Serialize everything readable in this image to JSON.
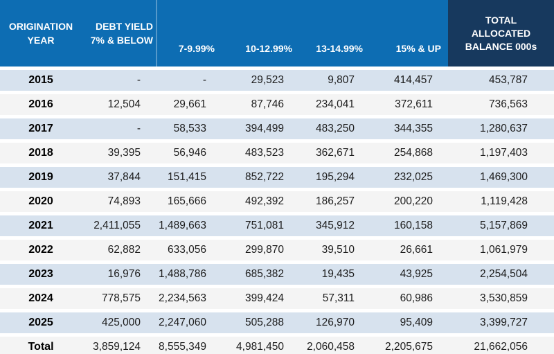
{
  "colors": {
    "header_blue": "#0d6db3",
    "header_navy": "#17395e",
    "row_blue": "#d7e2ee",
    "row_gray": "#f4f4f4",
    "text_dark": "#1c1c1c"
  },
  "chart_data": {
    "type": "table",
    "header": {
      "origination_line1": "ORIGINATION",
      "origination_line2": "YEAR",
      "debt_yield_line1": "DEBT YIELD",
      "debt_yield_line2": "7% & BELOW",
      "band_2": "7-9.99%",
      "band_3": "10-12.99%",
      "band_4": "13-14.99%",
      "band_5": "15% & UP",
      "total_line1": "TOTAL",
      "total_line2": "ALLOCATED",
      "total_line3": "BALANCE 000s"
    },
    "columns": [
      "ORIGINATION YEAR",
      "DEBT YIELD 7% & BELOW",
      "7-9.99%",
      "10-12.99%",
      "13-14.99%",
      "15% & UP",
      "TOTAL ALLOCATED BALANCE 000s"
    ],
    "rows": [
      {
        "year": "2015",
        "cells": [
          "-",
          "-",
          "29,523",
          "9,807",
          "414,457",
          "453,787"
        ]
      },
      {
        "year": "2016",
        "cells": [
          "12,504",
          "29,661",
          "87,746",
          "234,041",
          "372,611",
          "736,563"
        ]
      },
      {
        "year": "2017",
        "cells": [
          "-",
          "58,533",
          "394,499",
          "483,250",
          "344,355",
          "1,280,637"
        ]
      },
      {
        "year": "2018",
        "cells": [
          "39,395",
          "56,946",
          "483,523",
          "362,671",
          "254,868",
          "1,197,403"
        ]
      },
      {
        "year": "2019",
        "cells": [
          "37,844",
          "151,415",
          "852,722",
          "195,294",
          "232,025",
          "1,469,300"
        ]
      },
      {
        "year": "2020",
        "cells": [
          "74,893",
          "165,666",
          "492,392",
          "186,257",
          "200,220",
          "1,119,428"
        ]
      },
      {
        "year": "2021",
        "cells": [
          "2,411,055",
          "1,489,663",
          "751,081",
          "345,912",
          "160,158",
          "5,157,869"
        ]
      },
      {
        "year": "2022",
        "cells": [
          "62,882",
          "633,056",
          "299,870",
          "39,510",
          "26,661",
          "1,061,979"
        ]
      },
      {
        "year": "2023",
        "cells": [
          "16,976",
          "1,488,786",
          "685,382",
          "19,435",
          "43,925",
          "2,254,504"
        ]
      },
      {
        "year": "2024",
        "cells": [
          "778,575",
          "2,234,563",
          "399,424",
          "57,311",
          "60,986",
          "3,530,859"
        ]
      },
      {
        "year": "2025",
        "cells": [
          "425,000",
          "2,247,060",
          "505,288",
          "126,970",
          "95,409",
          "3,399,727"
        ]
      }
    ],
    "total": {
      "label": "Total",
      "cells": [
        "3,859,124",
        "8,555,349",
        "4,981,450",
        "2,060,458",
        "2,205,675",
        "21,662,056"
      ]
    }
  }
}
